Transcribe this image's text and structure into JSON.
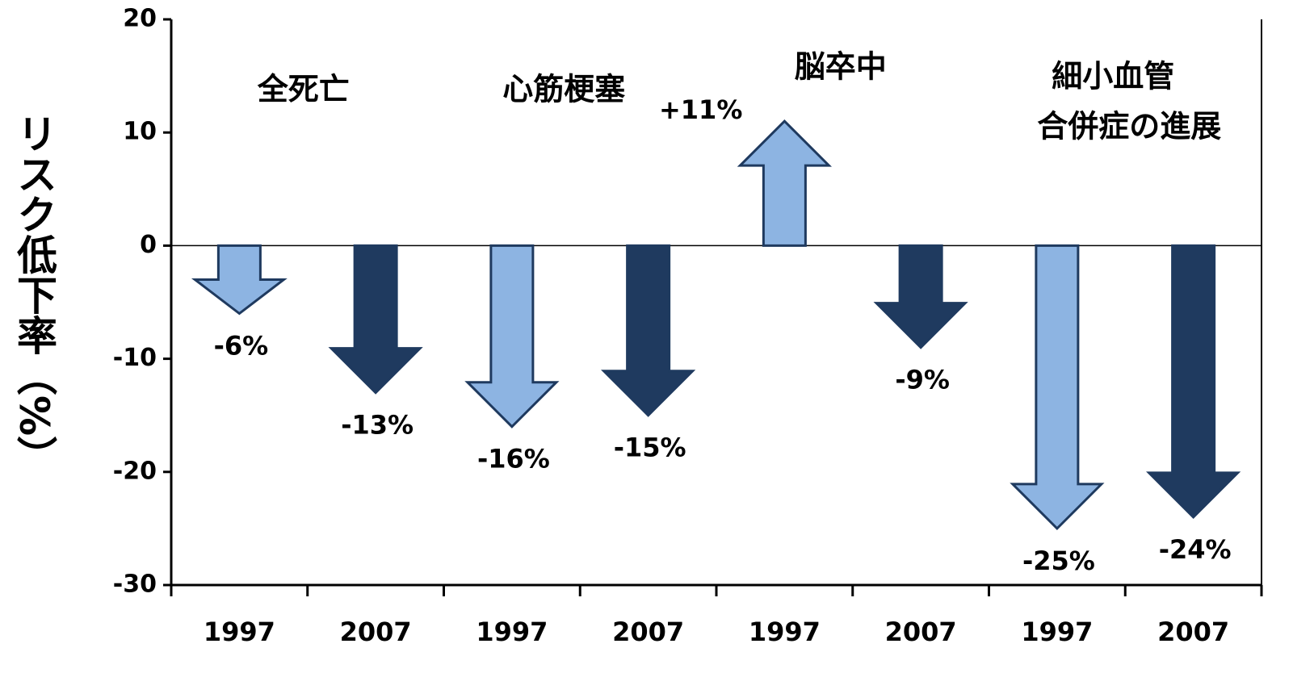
{
  "chart_data": {
    "type": "arrow",
    "y_label": "リスク低下率（%）",
    "categories": [
      "1997",
      "2007",
      "1997",
      "2007",
      "1997",
      "2007",
      "1997",
      "2007"
    ],
    "values": [
      -6,
      -13,
      -16,
      -15,
      11,
      -9,
      -25,
      -24
    ],
    "value_labels": [
      "-6%",
      "-13%",
      "-16%",
      "-15%",
      "+11%",
      "-9%",
      "-25%",
      "-24%"
    ],
    "colors": [
      "#8db4e2",
      "#1f3a5f",
      "#8db4e2",
      "#1f3a5f",
      "#8db4e2",
      "#1f3a5f",
      "#8db4e2",
      "#1f3a5f"
    ],
    "groups": [
      {
        "label": [
          "全死亡"
        ]
      },
      {
        "label": [
          "心筋梗塞"
        ]
      },
      {
        "label": [
          "脳卒中"
        ]
      },
      {
        "label": [
          "細小血管",
          "合併症の進展"
        ]
      }
    ],
    "ylim": [
      -30,
      20
    ],
    "yticks": [
      -30,
      -20,
      -10,
      0,
      10,
      20
    ]
  }
}
